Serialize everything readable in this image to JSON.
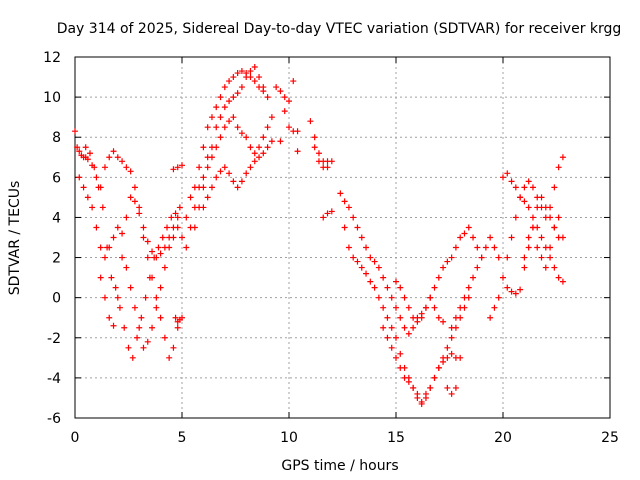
{
  "chart_data": {
    "type": "scatter",
    "title": "Day 314 of 2025, Sidereal Day-to-day VTEC variation (SDTVAR) for receiver krgg",
    "xlabel": "GPS time / hours",
    "ylabel": "SDTVAR / TECUs",
    "xlim": [
      0,
      25
    ],
    "ylim": [
      -6,
      12
    ],
    "xticks": [
      0,
      5,
      10,
      15,
      20,
      25
    ],
    "yticks": [
      -6,
      -4,
      -2,
      0,
      2,
      4,
      6,
      8,
      10,
      12
    ],
    "grid": true,
    "legend": "none",
    "marker": "+",
    "series_color": "#ff0000",
    "series": [
      {
        "x": [
          0.0,
          0.1,
          0.2,
          0.3,
          0.4,
          0.5,
          0.6,
          0.8,
          1.0,
          1.2,
          1.4,
          1.6,
          1.8,
          2.0,
          2.2,
          2.4,
          2.6,
          2.8,
          3.0,
          3.2,
          3.4,
          3.6,
          3.8,
          4.0,
          4.2,
          4.4,
          4.6,
          4.8
        ],
        "y": [
          8.3,
          7.5,
          7.3,
          7.1,
          7.0,
          7.0,
          6.9,
          6.6,
          6.0,
          5.5,
          6.5,
          7.0,
          7.3,
          7.0,
          6.8,
          6.5,
          6.3,
          5.5,
          4.5,
          3.5,
          2.8,
          2.3,
          2.0,
          2.2,
          2.5,
          3.0,
          3.5,
          4.0
        ]
      },
      {
        "x": [
          0.2,
          0.4,
          0.6,
          0.8,
          1.0,
          1.2,
          1.4,
          1.6,
          1.8,
          2.0,
          2.2,
          2.4,
          2.6,
          2.8,
          3.0,
          3.2,
          3.4,
          3.6,
          3.8,
          4.0,
          4.2,
          4.4,
          4.6,
          4.8
        ],
        "y": [
          6.0,
          5.5,
          5.0,
          4.5,
          3.5,
          2.5,
          2.0,
          2.5,
          3.0,
          3.5,
          3.2,
          1.5,
          0.5,
          -0.5,
          -1.5,
          -2.5,
          -2.2,
          -1.5,
          -0.5,
          0.5,
          1.5,
          2.5,
          3.0,
          3.5
        ]
      },
      {
        "x": [
          0.5,
          0.7,
          0.9,
          1.1,
          1.3,
          1.5,
          1.7,
          1.9,
          2.1,
          2.3,
          2.5,
          2.7,
          2.9,
          3.1,
          3.3,
          3.5,
          3.7,
          3.9,
          4.1,
          4.3,
          4.5,
          4.7,
          4.9
        ],
        "y": [
          7.5,
          7.2,
          6.5,
          5.5,
          4.5,
          2.5,
          1.0,
          0.5,
          -0.5,
          -1.5,
          -2.5,
          -3.0,
          -2.0,
          -1.0,
          0.0,
          1.0,
          2.0,
          2.5,
          3.0,
          3.5,
          4.0,
          4.2,
          4.5
        ]
      },
      {
        "x": [
          1.2,
          1.4,
          1.6,
          1.8,
          2.0,
          2.2,
          2.4,
          2.6,
          2.8,
          3.0,
          3.2,
          3.4,
          3.6,
          3.8,
          4.0,
          4.2,
          4.4,
          4.6,
          4.8
        ],
        "y": [
          1.0,
          0.0,
          -1.0,
          -1.4,
          0.0,
          2.0,
          4.0,
          5.0,
          4.8,
          4.2,
          3.0,
          2.0,
          1.0,
          0.0,
          -1.0,
          -2.0,
          -3.0,
          -2.5,
          -1.5
        ]
      },
      {
        "x": [
          4.7,
          4.8,
          4.9,
          5.0
        ],
        "y": [
          -1.0,
          -1.2,
          -1.1,
          -1.0
        ]
      },
      {
        "x": [
          4.6,
          4.8,
          5.0
        ],
        "y": [
          6.4,
          6.5,
          6.6
        ]
      },
      {
        "x": [
          5.0,
          5.2,
          5.4,
          5.6,
          5.8,
          6.0,
          6.2,
          6.4,
          6.6,
          6.8,
          7.0,
          7.2,
          7.4,
          7.6,
          7.8,
          8.0,
          8.2,
          8.4,
          8.6,
          8.8,
          9.0
        ],
        "y": [
          3.0,
          4.0,
          5.0,
          5.5,
          6.5,
          7.5,
          8.5,
          9.0,
          9.5,
          10.0,
          10.5,
          10.8,
          11.0,
          11.2,
          11.3,
          11.2,
          11.0,
          10.8,
          10.5,
          10.3,
          10.0
        ]
      },
      {
        "x": [
          5.2,
          5.4,
          5.6,
          5.8,
          6.0,
          6.2,
          6.4,
          6.6,
          6.8,
          7.0,
          7.2,
          7.4,
          7.6,
          7.8,
          8.0,
          8.2,
          8.4,
          8.6,
          8.8
        ],
        "y": [
          2.5,
          3.5,
          4.5,
          5.5,
          6.0,
          7.0,
          7.5,
          8.5,
          9.0,
          9.5,
          9.8,
          10.0,
          10.2,
          10.5,
          11.0,
          11.3,
          11.5,
          11.0,
          10.5
        ]
      },
      {
        "x": [
          5.6,
          5.8,
          6.0,
          6.2,
          6.4,
          6.6,
          6.8,
          7.0,
          7.2,
          7.4,
          7.6,
          7.8,
          8.0,
          8.2,
          8.4,
          8.6,
          8.8,
          9.0,
          9.2
        ],
        "y": [
          3.5,
          4.5,
          5.5,
          6.5,
          7.0,
          7.5,
          8.0,
          8.5,
          8.8,
          9.0,
          8.5,
          8.2,
          8.0,
          7.5,
          7.2,
          7.5,
          8.0,
          8.5,
          9.0
        ]
      },
      {
        "x": [
          6.0,
          6.2,
          6.4,
          6.6,
          6.8,
          7.0,
          7.2,
          7.4,
          7.6,
          7.8,
          8.0,
          8.2,
          8.4,
          8.6,
          8.8,
          9.0,
          9.2
        ],
        "y": [
          4.5,
          5.0,
          5.5,
          6.0,
          6.3,
          6.5,
          6.2,
          5.8,
          5.5,
          5.8,
          6.2,
          6.5,
          6.8,
          7.0,
          7.2,
          7.5,
          7.8
        ]
      },
      {
        "x": [
          9.4,
          9.6,
          9.8,
          10.0,
          10.2
        ],
        "y": [
          10.5,
          10.3,
          10.0,
          9.8,
          10.8
        ]
      },
      {
        "x": [
          9.8,
          10.0,
          10.2,
          10.4
        ],
        "y": [
          9.3,
          8.5,
          8.3,
          8.3
        ]
      },
      {
        "x": [
          9.6,
          10.4
        ],
        "y": [
          7.8,
          7.3
        ]
      },
      {
        "x": [
          11.0,
          11.2,
          11.4,
          11.6,
          11.8,
          12.0
        ],
        "y": [
          8.8,
          8.0,
          7.2,
          6.8,
          6.5,
          6.8
        ]
      },
      {
        "x": [
          11.2,
          11.4,
          11.6,
          11.8
        ],
        "y": [
          7.5,
          6.8,
          6.5,
          6.8
        ]
      },
      {
        "x": [
          11.6,
          11.8,
          12.0
        ],
        "y": [
          4.0,
          4.2,
          4.3
        ]
      },
      {
        "x": [
          12.4,
          12.6,
          12.8,
          13.0,
          13.2,
          13.4,
          13.6,
          13.8,
          14.0,
          14.2,
          14.4,
          14.6,
          14.8,
          15.0,
          15.2,
          15.4,
          15.6,
          15.8,
          16.0,
          16.2,
          16.4,
          16.6,
          16.8,
          17.0,
          17.2,
          17.4,
          17.6,
          17.8,
          18.0,
          18.2,
          18.4,
          18.6,
          18.8,
          19.0
        ],
        "y": [
          5.2,
          4.8,
          4.5,
          4.0,
          3.5,
          3.0,
          2.5,
          2.0,
          1.8,
          1.5,
          1.0,
          0.5,
          0.0,
          -0.5,
          -1.0,
          -1.5,
          -1.8,
          -1.5,
          -1.0,
          -0.8,
          -0.5,
          0.0,
          0.5,
          1.0,
          1.5,
          1.8,
          2.0,
          2.5,
          3.0,
          3.2,
          3.5,
          3.0,
          2.5,
          2.0
        ]
      },
      {
        "x": [
          12.6,
          12.8,
          13.0,
          13.2,
          13.4,
          13.6,
          13.8,
          14.0,
          14.2,
          14.4,
          14.6,
          14.8,
          15.0,
          15.2,
          15.4,
          15.6,
          15.8,
          16.0,
          16.2,
          16.4,
          16.6,
          16.8,
          17.0,
          17.2,
          17.4,
          17.6,
          17.8,
          18.0,
          18.2,
          18.4
        ],
        "y": [
          3.5,
          2.5,
          2.0,
          1.8,
          1.5,
          1.2,
          0.8,
          0.5,
          0.0,
          -0.5,
          -1.0,
          -1.5,
          -2.0,
          -2.8,
          -3.5,
          -4.0,
          -4.5,
          -5.0,
          -5.2,
          -4.8,
          -4.5,
          -4.0,
          -3.5,
          -3.0,
          -2.5,
          -2.0,
          -1.5,
          -1.0,
          -0.5,
          0.0
        ]
      },
      {
        "x": [
          14.4,
          14.6,
          14.8,
          15.0,
          15.2,
          15.4,
          15.6,
          15.8,
          16.0,
          16.2,
          16.4,
          16.6,
          16.8,
          17.0,
          17.2,
          17.4,
          17.6,
          17.8,
          18.0
        ],
        "y": [
          -1.5,
          -2.0,
          -2.5,
          -3.0,
          -3.5,
          -4.0,
          -4.2,
          -4.5,
          -4.8,
          -5.3,
          -5.0,
          -4.5,
          -4.0,
          -3.5,
          -3.2,
          -3.0,
          -2.8,
          -3.0,
          -3.0
        ]
      },
      {
        "x": [
          15.0,
          15.2,
          15.4,
          15.6,
          15.8,
          16.0,
          16.2,
          16.4,
          16.6,
          16.8,
          17.0,
          17.2
        ],
        "y": [
          0.8,
          0.5,
          0.0,
          -0.5,
          -1.0,
          -1.2,
          -1.0,
          -0.5,
          0.0,
          -0.5,
          -1.0,
          -1.2
        ]
      },
      {
        "x": [
          17.4,
          17.6,
          17.8
        ],
        "y": [
          -4.5,
          -4.8,
          -4.5
        ]
      },
      {
        "x": [
          17.6,
          17.8,
          18.0,
          18.2,
          18.4,
          18.6,
          18.8,
          19.0,
          19.2,
          19.4,
          19.6,
          19.8
        ],
        "y": [
          -1.5,
          -1.0,
          -0.5,
          0.0,
          0.5,
          1.0,
          1.5,
          2.0,
          2.5,
          3.0,
          2.5,
          2.0
        ]
      },
      {
        "x": [
          19.4,
          19.6,
          19.8,
          20.0,
          20.2,
          20.4,
          20.6,
          20.8,
          21.0,
          21.2,
          21.4,
          21.6,
          21.8,
          22.0,
          22.2,
          22.4,
          22.6,
          22.8
        ],
        "y": [
          -1.0,
          -0.5,
          0.0,
          1.0,
          2.0,
          3.0,
          4.0,
          5.0,
          5.5,
          5.8,
          5.5,
          5.0,
          4.5,
          4.0,
          4.5,
          5.5,
          6.5,
          7.0
        ]
      },
      {
        "x": [
          20.0,
          20.2,
          20.4,
          20.6,
          20.8,
          21.0,
          21.2,
          21.4,
          21.6,
          21.8,
          22.0,
          22.2,
          22.4,
          22.6,
          22.8
        ],
        "y": [
          6.0,
          6.2,
          5.8,
          5.5,
          5.0,
          4.8,
          4.5,
          4.0,
          3.5,
          3.0,
          2.5,
          2.0,
          1.5,
          1.0,
          0.8
        ]
      },
      {
        "x": [
          20.2,
          20.4,
          20.6,
          20.8,
          21.0,
          21.2,
          21.4,
          21.6,
          21.8,
          22.0,
          22.2,
          22.4,
          22.6,
          22.8
        ],
        "y": [
          0.5,
          0.3,
          0.2,
          0.4,
          2.0,
          3.0,
          3.5,
          2.5,
          2.0,
          1.5,
          2.5,
          3.5,
          4.0,
          3.0
        ]
      },
      {
        "x": [
          21.0,
          21.2,
          21.4,
          21.6,
          21.8,
          22.0,
          22.2,
          22.4,
          22.6
        ],
        "y": [
          1.5,
          2.5,
          3.5,
          4.5,
          5.0,
          4.5,
          4.0,
          3.5,
          3.0
        ]
      }
    ]
  }
}
